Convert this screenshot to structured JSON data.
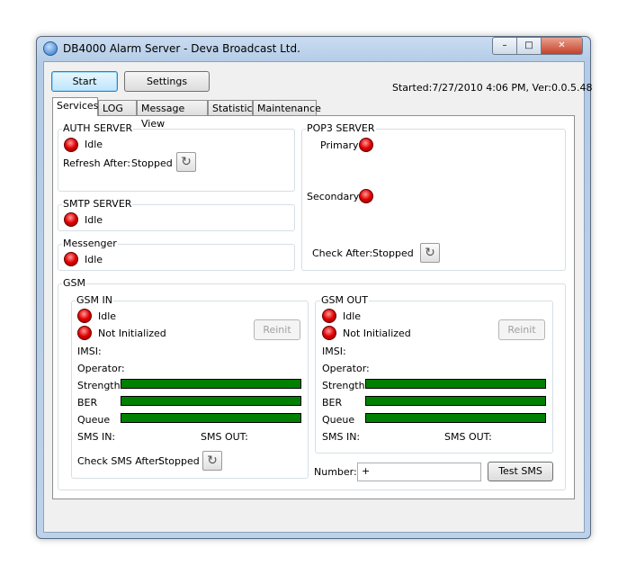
{
  "window": {
    "title": "DB4000 Alarm Server - Deva Broadcast Ltd.",
    "minimize": "–",
    "maximize": "□",
    "close": "✕"
  },
  "toolbar": {
    "start": "Start",
    "settings": "Settings",
    "status": "Started:7/27/2010 4:06 PM, Ver:0.0.5.48"
  },
  "tabs": [
    "Services",
    "LOG",
    "Message View",
    "Statistic",
    "Maintenance"
  ],
  "auth": {
    "title": "AUTH SERVER",
    "status": "Idle",
    "refresh_label": "Refresh After:",
    "refresh_value": "Stopped"
  },
  "smtp": {
    "title": "SMTP SERVER",
    "status": "Idle"
  },
  "messenger": {
    "title": "Messenger",
    "status": "Idle"
  },
  "pop3": {
    "title": "POP3 SERVER",
    "primary": "Primary",
    "secondary": "Secondary",
    "check_label": "Check After:",
    "check_value": "Stopped"
  },
  "gsm": {
    "title": "GSM",
    "in": {
      "title": "GSM IN",
      "status": "Idle",
      "init": "Not Initialized",
      "reinit": "Reinit",
      "imsi": "IMSI:",
      "operator": "Operator:",
      "strength": "Strength",
      "ber": "BER",
      "queue": "Queue",
      "sms_in": "SMS IN:",
      "sms_out": "SMS OUT:",
      "check_label": "Check SMS After:",
      "check_value": "Stopped"
    },
    "out": {
      "title": "GSM OUT",
      "status": "Idle",
      "init": "Not Initialized",
      "reinit": "Reinit",
      "imsi": "IMSI:",
      "operator": "Operator:",
      "strength": "Strength",
      "ber": "BER",
      "queue": "Queue",
      "sms_in": "SMS IN:",
      "sms_out": "SMS OUT:"
    },
    "number_label": "Number:",
    "number_value": "+",
    "test_sms": "Test SMS"
  },
  "colors": {
    "led": "#e00000",
    "bar": "#008000"
  },
  "icons": {
    "refresh": "↻"
  }
}
